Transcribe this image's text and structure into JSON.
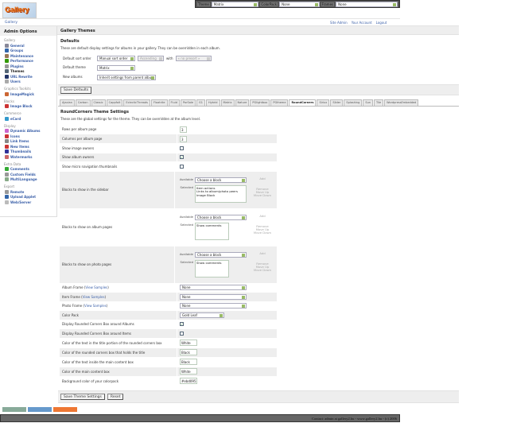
{
  "header": {
    "logo_text": "Gallery",
    "breadcrumb": "Gallery",
    "links": [
      "Site Admin",
      "Your Account",
      "Logout"
    ]
  },
  "topbar": {
    "theme_label": "Theme",
    "theme_value": "Matrix",
    "colorpack_label": "ColorPack",
    "colorpack_value": "None",
    "frames_label": "Frames",
    "frames_value": "None"
  },
  "sidebar": {
    "title": "Admin Options",
    "groups": [
      {
        "label": "Gallery",
        "items": [
          {
            "label": "General",
            "icon": "general-icon",
            "color": "#889"
          },
          {
            "label": "Groups",
            "icon": "groups-icon",
            "color": "#36a"
          },
          {
            "label": "Maintenance",
            "icon": "tools-icon",
            "color": "#975"
          },
          {
            "label": "Performance",
            "icon": "performance-icon",
            "color": "#390"
          },
          {
            "label": "Plugins",
            "icon": "plugin-icon",
            "color": "#999"
          },
          {
            "label": "Themes",
            "icon": "themes-icon",
            "color": "#567",
            "active": true
          },
          {
            "label": "URL Rewrite",
            "icon": "url-rewrite-icon",
            "color": "#236"
          },
          {
            "label": "Users",
            "icon": "users-icon",
            "color": "#aaa"
          }
        ]
      },
      {
        "label": "Graphics Toolkits",
        "items": [
          {
            "label": "ImageMagick",
            "icon": "imagemagick-icon",
            "color": "#c63"
          }
        ]
      },
      {
        "label": "Blocks",
        "items": [
          {
            "label": "Image Block",
            "icon": "image-block-icon",
            "color": "#c33"
          }
        ]
      },
      {
        "label": "Commerce",
        "items": [
          {
            "label": "eCard",
            "icon": "ecard-icon",
            "color": "#39c"
          }
        ]
      },
      {
        "label": "Display",
        "items": [
          {
            "label": "Dynamic Albums",
            "icon": "dynamic-albums-icon",
            "color": "#c6c"
          },
          {
            "label": "Icons",
            "icon": "icons-icon",
            "color": "#c33"
          },
          {
            "label": "Link Items",
            "icon": "link-icon",
            "color": "#888"
          },
          {
            "label": "New Items",
            "icon": "new-items-icon",
            "color": "#c33"
          },
          {
            "label": "Thumbnails",
            "icon": "thumbnails-icon",
            "color": "#339"
          },
          {
            "label": "Watermarks",
            "icon": "watermarks-icon",
            "color": "#c66"
          }
        ]
      },
      {
        "label": "Extra Data",
        "items": [
          {
            "label": "Comments",
            "icon": "comments-icon",
            "color": "#3a3"
          },
          {
            "label": "Custom Fields",
            "icon": "custom-fields-icon",
            "color": "#999"
          },
          {
            "label": "MultiLanguage",
            "icon": "multilanguage-icon",
            "color": "#8a8"
          }
        ]
      },
      {
        "label": "Export",
        "items": [
          {
            "label": "Remote",
            "icon": "remote-icon",
            "color": "#999"
          },
          {
            "label": "Upload Applet",
            "icon": "upload-applet-icon",
            "color": "#36a"
          },
          {
            "label": "Web/Server",
            "icon": "web-server-icon",
            "color": "#bbb"
          }
        ]
      }
    ]
  },
  "main": {
    "title": "Gallery Themes",
    "defaults": {
      "heading": "Defaults",
      "description": "These are default display settings for albums in your gallery. They can be overridden in each album.",
      "sort_label": "Default sort order",
      "sort_value": "Manual sort order",
      "direction_value": "Ascending",
      "with_label": "with",
      "preset_value": "« no presort »",
      "theme_label": "Default theme",
      "theme_value": "Matrix",
      "new_albums_label": "New albums",
      "new_albums_value": "Inherit settings from parent album",
      "save_label": "Save Defaults"
    },
    "tabs": [
      "Ajaxian",
      "Carbon",
      "Classic",
      "Cappfolt",
      "EclecticThreads",
      "Floatrite",
      "Fluid",
      "PorSale",
      "G1",
      "Hybrid",
      "Matrix",
      "Nature",
      "PGlightbox",
      "PGtheme",
      "RoundCorners",
      "Siriux",
      "Slider",
      "Splashing",
      "Sun",
      "Tile",
      "WordpressEmbedded"
    ],
    "active_tab": "RoundCorners",
    "settings": {
      "heading": "RoundCorners Theme Settings",
      "description": "These are the global settings for the theme. They can be overridden at the album level.",
      "block_labels": {
        "available": "Available",
        "selected": "Selected",
        "choose": "Choose a block",
        "add": "Add",
        "remove": "Remove",
        "move_up": "Move Up",
        "move_down": "Move Down"
      },
      "view_samples": "View Samples",
      "rows": [
        {
          "label": "Rows per album page",
          "type": "text",
          "value": "3"
        },
        {
          "label": "Columns per album page",
          "type": "text",
          "value": "3"
        },
        {
          "label": "Show image owners",
          "type": "checkbox",
          "checked": false
        },
        {
          "label": "Show album owners",
          "type": "checkbox",
          "checked": true
        },
        {
          "label": "Show micro navigation thumbnails",
          "type": "checkbox",
          "checked": false
        },
        {
          "label": "Blocks to show in the sidebar",
          "type": "blocks",
          "selected": [
            "Item actions",
            "Links to album/photo peers",
            "Image Block"
          ]
        },
        {
          "label": "Blocks to show on album pages",
          "type": "blocks",
          "selected": [
            "Show comments"
          ]
        },
        {
          "label": "Blocks to show on photo pages",
          "type": "blocks",
          "selected": [
            "Show comments"
          ]
        },
        {
          "label": "Album Frame",
          "samples": true,
          "type": "select",
          "value": "None"
        },
        {
          "label": "Item Frame",
          "samples": true,
          "type": "select",
          "value": "None"
        },
        {
          "label": "Photo Frame",
          "samples": true,
          "type": "select",
          "value": "None"
        },
        {
          "label": "Color Pack",
          "type": "select-short",
          "value": "Gold Leaf"
        },
        {
          "label": "Display Rounded Corners Box around Albums",
          "type": "checkbox",
          "checked": true
        },
        {
          "label": "Display Rounded Corners Box around Items",
          "type": "checkbox",
          "checked": false
        },
        {
          "label": "Color of the text in the title portion of the rounded corners box",
          "type": "text",
          "value": "White"
        },
        {
          "label": "Color of the rounded corners box that holds the title",
          "type": "text",
          "value": "Black"
        },
        {
          "label": "Color of the text inside the main content box",
          "type": "text",
          "value": "Black"
        },
        {
          "label": "Color of the main content box",
          "type": "text",
          "value": "White"
        },
        {
          "label": "Background color of your colorpack",
          "type": "text",
          "value": "#ebd095"
        }
      ],
      "save_label": "Save Theme Settings",
      "reset_label": "Reset"
    }
  },
  "footer": {
    "text": "Contact: admin at gallery2.hu - www.gallery2.hu - (c) 2006"
  }
}
